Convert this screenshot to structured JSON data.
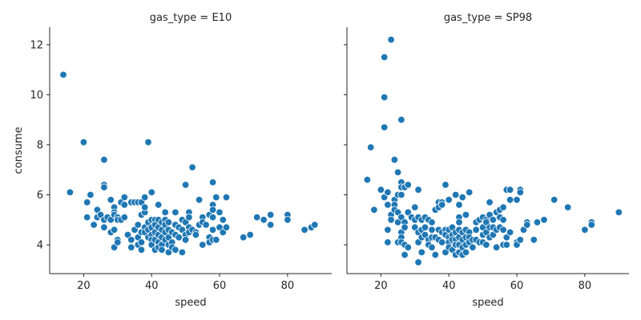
{
  "chart_data": {
    "type": "scatter",
    "marker_color": "#1f77b4",
    "marker_edge_color": "#ffffff",
    "xlabel": "speed",
    "ylabel": "consume",
    "xlim": [
      10,
      93
    ],
    "ylim": [
      2.85,
      12.7
    ],
    "x_ticks": [
      20,
      40,
      60,
      80
    ],
    "y_ticks": [
      4,
      6,
      8,
      10,
      12
    ],
    "grid": false,
    "sharey": true,
    "facets": [
      {
        "title": "gas_type = E10",
        "points": [
          [
            14,
            10.8
          ],
          [
            16,
            6.1
          ],
          [
            20,
            8.1
          ],
          [
            21,
            5.7
          ],
          [
            21,
            5.1
          ],
          [
            22,
            6.0
          ],
          [
            23,
            4.8
          ],
          [
            24,
            5.4
          ],
          [
            24,
            5.1
          ],
          [
            25,
            5.2
          ],
          [
            26,
            7.4
          ],
          [
            26,
            6.4
          ],
          [
            26,
            6.3
          ],
          [
            26,
            5.0
          ],
          [
            26,
            4.7
          ],
          [
            27,
            5.1
          ],
          [
            28,
            5.8
          ],
          [
            28,
            5.0
          ],
          [
            28,
            4.5
          ],
          [
            29,
            5.5
          ],
          [
            29,
            5.3
          ],
          [
            29,
            5.2
          ],
          [
            29,
            4.6
          ],
          [
            29,
            3.9
          ],
          [
            30,
            5.1
          ],
          [
            30,
            5.0
          ],
          [
            30,
            4.2
          ],
          [
            30,
            4.1
          ],
          [
            31,
            5.7
          ],
          [
            31,
            5.0
          ],
          [
            32,
            5.9
          ],
          [
            32,
            5.6
          ],
          [
            32,
            5.1
          ],
          [
            33,
            4.4
          ],
          [
            34,
            5.7
          ],
          [
            34,
            4.2
          ],
          [
            34,
            3.9
          ],
          [
            35,
            5.7
          ],
          [
            35,
            4.6
          ],
          [
            36,
            5.7
          ],
          [
            36,
            4.8
          ],
          [
            36,
            4.3
          ],
          [
            36,
            4.0
          ],
          [
            37,
            5.7
          ],
          [
            37,
            5.2
          ],
          [
            37,
            4.5
          ],
          [
            37,
            4.1
          ],
          [
            37,
            3.8
          ],
          [
            38,
            5.9
          ],
          [
            38,
            5.3
          ],
          [
            38,
            5.5
          ],
          [
            38,
            4.7
          ],
          [
            38,
            4.5
          ],
          [
            39,
            8.1
          ],
          [
            39,
            4.9
          ],
          [
            39,
            4.6
          ],
          [
            39,
            4.3
          ],
          [
            40,
            6.1
          ],
          [
            40,
            5.0
          ],
          [
            40,
            4.7
          ],
          [
            40,
            4.4
          ],
          [
            40,
            4.2
          ],
          [
            40,
            4.0
          ],
          [
            41,
            5.0
          ],
          [
            41,
            4.8
          ],
          [
            41,
            4.5
          ],
          [
            41,
            4.2
          ],
          [
            41,
            3.8
          ],
          [
            42,
            5.6
          ],
          [
            42,
            5.0
          ],
          [
            42,
            4.7
          ],
          [
            42,
            4.4
          ],
          [
            42,
            4.1
          ],
          [
            42,
            3.9
          ],
          [
            43,
            4.9
          ],
          [
            43,
            4.6
          ],
          [
            43,
            4.3
          ],
          [
            43,
            4.0
          ],
          [
            43,
            3.8
          ],
          [
            44,
            5.3
          ],
          [
            44,
            5.0
          ],
          [
            44,
            4.8
          ],
          [
            44,
            4.5
          ],
          [
            44,
            4.2
          ],
          [
            45,
            4.9
          ],
          [
            45,
            4.6
          ],
          [
            45,
            4.3
          ],
          [
            45,
            4.0
          ],
          [
            45,
            3.7
          ],
          [
            46,
            4.5
          ],
          [
            46,
            4.1
          ],
          [
            46,
            3.9
          ],
          [
            47,
            5.3
          ],
          [
            47,
            4.8
          ],
          [
            47,
            4.4
          ],
          [
            47,
            3.8
          ],
          [
            48,
            4.7
          ],
          [
            48,
            4.3
          ],
          [
            49,
            5.0
          ],
          [
            49,
            4.6
          ],
          [
            49,
            3.7
          ],
          [
            50,
            6.4
          ],
          [
            50,
            4.9
          ],
          [
            50,
            4.4
          ],
          [
            50,
            4.2
          ],
          [
            51,
            5.3
          ],
          [
            51,
            5.1
          ],
          [
            51,
            4.7
          ],
          [
            51,
            4.5
          ],
          [
            52,
            7.1
          ],
          [
            52,
            4.6
          ],
          [
            53,
            4.5
          ],
          [
            53,
            4.4
          ],
          [
            54,
            5.8
          ],
          [
            54,
            4.8
          ],
          [
            55,
            5.1
          ],
          [
            55,
            4.9
          ],
          [
            55,
            4.0
          ],
          [
            56,
            4.8
          ],
          [
            57,
            5.2
          ],
          [
            57,
            4.3
          ],
          [
            57,
            4.1
          ],
          [
            58,
            6.5
          ],
          [
            58,
            5.6
          ],
          [
            58,
            5.4
          ],
          [
            58,
            5.1
          ],
          [
            58,
            4.6
          ],
          [
            58,
            4.2
          ],
          [
            59,
            5.9
          ],
          [
            59,
            4.2
          ],
          [
            60,
            5.3
          ],
          [
            60,
            4.7
          ],
          [
            61,
            5.0
          ],
          [
            61,
            4.5
          ],
          [
            62,
            5.9
          ],
          [
            62,
            4.7
          ],
          [
            67,
            4.3
          ],
          [
            69,
            4.4
          ],
          [
            71,
            5.1
          ],
          [
            73,
            5.0
          ],
          [
            75,
            5.2
          ],
          [
            75,
            4.8
          ],
          [
            80,
            5.2
          ],
          [
            80,
            5.0
          ],
          [
            85,
            4.6
          ],
          [
            87,
            4.7
          ],
          [
            88,
            4.8
          ]
        ]
      },
      {
        "title": "gas_type = SP98",
        "points": [
          [
            16,
            6.6
          ],
          [
            17,
            7.9
          ],
          [
            18,
            5.4
          ],
          [
            20,
            6.2
          ],
          [
            21,
            11.5
          ],
          [
            21,
            9.9
          ],
          [
            21,
            8.7
          ],
          [
            21,
            5.9
          ],
          [
            22,
            6.1
          ],
          [
            22,
            5.6
          ],
          [
            22,
            4.6
          ],
          [
            22,
            4.1
          ],
          [
            23,
            12.2
          ],
          [
            23,
            5.2
          ],
          [
            23,
            5.0
          ],
          [
            24,
            7.4
          ],
          [
            24,
            5.8
          ],
          [
            24,
            5.6
          ],
          [
            24,
            5.4
          ],
          [
            25,
            6.9
          ],
          [
            25,
            6.0
          ],
          [
            25,
            5.3
          ],
          [
            25,
            4.9
          ],
          [
            25,
            4.1
          ],
          [
            26,
            9.0
          ],
          [
            26,
            6.5
          ],
          [
            26,
            6.3
          ],
          [
            26,
            6.0
          ],
          [
            26,
            5.1
          ],
          [
            26,
            4.5
          ],
          [
            26,
            4.3
          ],
          [
            26,
            4.1
          ],
          [
            27,
            6.3
          ],
          [
            27,
            4.9
          ],
          [
            27,
            4.7
          ],
          [
            27,
            4.0
          ],
          [
            27,
            3.6
          ],
          [
            28,
            6.4
          ],
          [
            28,
            5.3
          ],
          [
            28,
            3.9
          ],
          [
            29,
            5.1
          ],
          [
            30,
            5.5
          ],
          [
            30,
            5.0
          ],
          [
            30,
            4.7
          ],
          [
            31,
            6.2
          ],
          [
            31,
            5.1
          ],
          [
            31,
            4.5
          ],
          [
            31,
            4.1
          ],
          [
            31,
            3.3
          ],
          [
            32,
            5.0
          ],
          [
            32,
            4.6
          ],
          [
            32,
            4.3
          ],
          [
            32,
            3.7
          ],
          [
            33,
            5.1
          ],
          [
            33,
            4.7
          ],
          [
            33,
            4.4
          ],
          [
            34,
            5.0
          ],
          [
            34,
            4.2
          ],
          [
            34,
            4.0
          ],
          [
            35,
            4.9
          ],
          [
            35,
            4.6
          ],
          [
            35,
            4.3
          ],
          [
            35,
            3.9
          ],
          [
            36,
            5.4
          ],
          [
            36,
            4.3
          ],
          [
            36,
            3.6
          ],
          [
            37,
            5.7
          ],
          [
            37,
            5.5
          ],
          [
            37,
            4.6
          ],
          [
            37,
            4.2
          ],
          [
            38,
            5.7
          ],
          [
            38,
            5.6
          ],
          [
            38,
            4.5
          ],
          [
            38,
            4.1
          ],
          [
            39,
            6.4
          ],
          [
            39,
            4.6
          ],
          [
            39,
            4.4
          ],
          [
            39,
            3.7
          ],
          [
            40,
            5.8
          ],
          [
            40,
            4.6
          ],
          [
            40,
            4.3
          ],
          [
            40,
            4.1
          ],
          [
            40,
            3.9
          ],
          [
            41,
            4.7
          ],
          [
            41,
            4.4
          ],
          [
            41,
            4.2
          ],
          [
            41,
            3.8
          ],
          [
            42,
            6.0
          ],
          [
            42,
            4.5
          ],
          [
            42,
            4.2
          ],
          [
            42,
            4.0
          ],
          [
            42,
            3.6
          ],
          [
            43,
            5.6
          ],
          [
            43,
            5.1
          ],
          [
            43,
            4.9
          ],
          [
            43,
            4.6
          ],
          [
            43,
            4.3
          ],
          [
            43,
            4.0
          ],
          [
            43,
            3.7
          ],
          [
            44,
            5.9
          ],
          [
            44,
            4.5
          ],
          [
            44,
            4.2
          ],
          [
            44,
            3.9
          ],
          [
            44,
            3.6
          ],
          [
            45,
            5.2
          ],
          [
            45,
            4.6
          ],
          [
            45,
            4.3
          ],
          [
            45,
            4.0
          ],
          [
            45,
            3.7
          ],
          [
            46,
            6.1
          ],
          [
            46,
            4.5
          ],
          [
            46,
            4.3
          ],
          [
            46,
            4.1
          ],
          [
            47,
            4.2
          ],
          [
            47,
            3.9
          ],
          [
            48,
            4.9
          ],
          [
            48,
            4.6
          ],
          [
            48,
            4.2
          ],
          [
            49,
            5.0
          ],
          [
            49,
            4.1
          ],
          [
            50,
            5.1
          ],
          [
            50,
            4.7
          ],
          [
            50,
            4.4
          ],
          [
            50,
            4.1
          ],
          [
            51,
            5.0
          ],
          [
            51,
            4.9
          ],
          [
            51,
            4.5
          ],
          [
            51,
            4.0
          ],
          [
            52,
            5.7
          ],
          [
            52,
            5.2
          ],
          [
            52,
            4.7
          ],
          [
            52,
            4.3
          ],
          [
            53,
            5.0
          ],
          [
            53,
            4.7
          ],
          [
            53,
            4.4
          ],
          [
            54,
            5.3
          ],
          [
            54,
            4.6
          ],
          [
            54,
            3.9
          ],
          [
            55,
            5.4
          ],
          [
            55,
            5.1
          ],
          [
            55,
            4.7
          ],
          [
            56,
            5.5
          ],
          [
            56,
            5.0
          ],
          [
            56,
            4.6
          ],
          [
            56,
            4.0
          ],
          [
            57,
            6.2
          ],
          [
            57,
            4.3
          ],
          [
            57,
            4.0
          ],
          [
            58,
            6.2
          ],
          [
            58,
            5.8
          ],
          [
            58,
            4.5
          ],
          [
            60,
            5.8
          ],
          [
            60,
            4.1
          ],
          [
            60,
            4.0
          ],
          [
            61,
            6.2
          ],
          [
            61,
            6.1
          ],
          [
            61,
            4.2
          ],
          [
            62,
            4.6
          ],
          [
            63,
            4.9
          ],
          [
            63,
            4.8
          ],
          [
            65,
            4.2
          ],
          [
            66,
            4.9
          ],
          [
            68,
            5.0
          ],
          [
            71,
            5.8
          ],
          [
            75,
            5.5
          ],
          [
            80,
            4.6
          ],
          [
            82,
            4.9
          ],
          [
            82,
            4.8
          ],
          [
            90,
            5.3
          ]
        ]
      }
    ]
  }
}
